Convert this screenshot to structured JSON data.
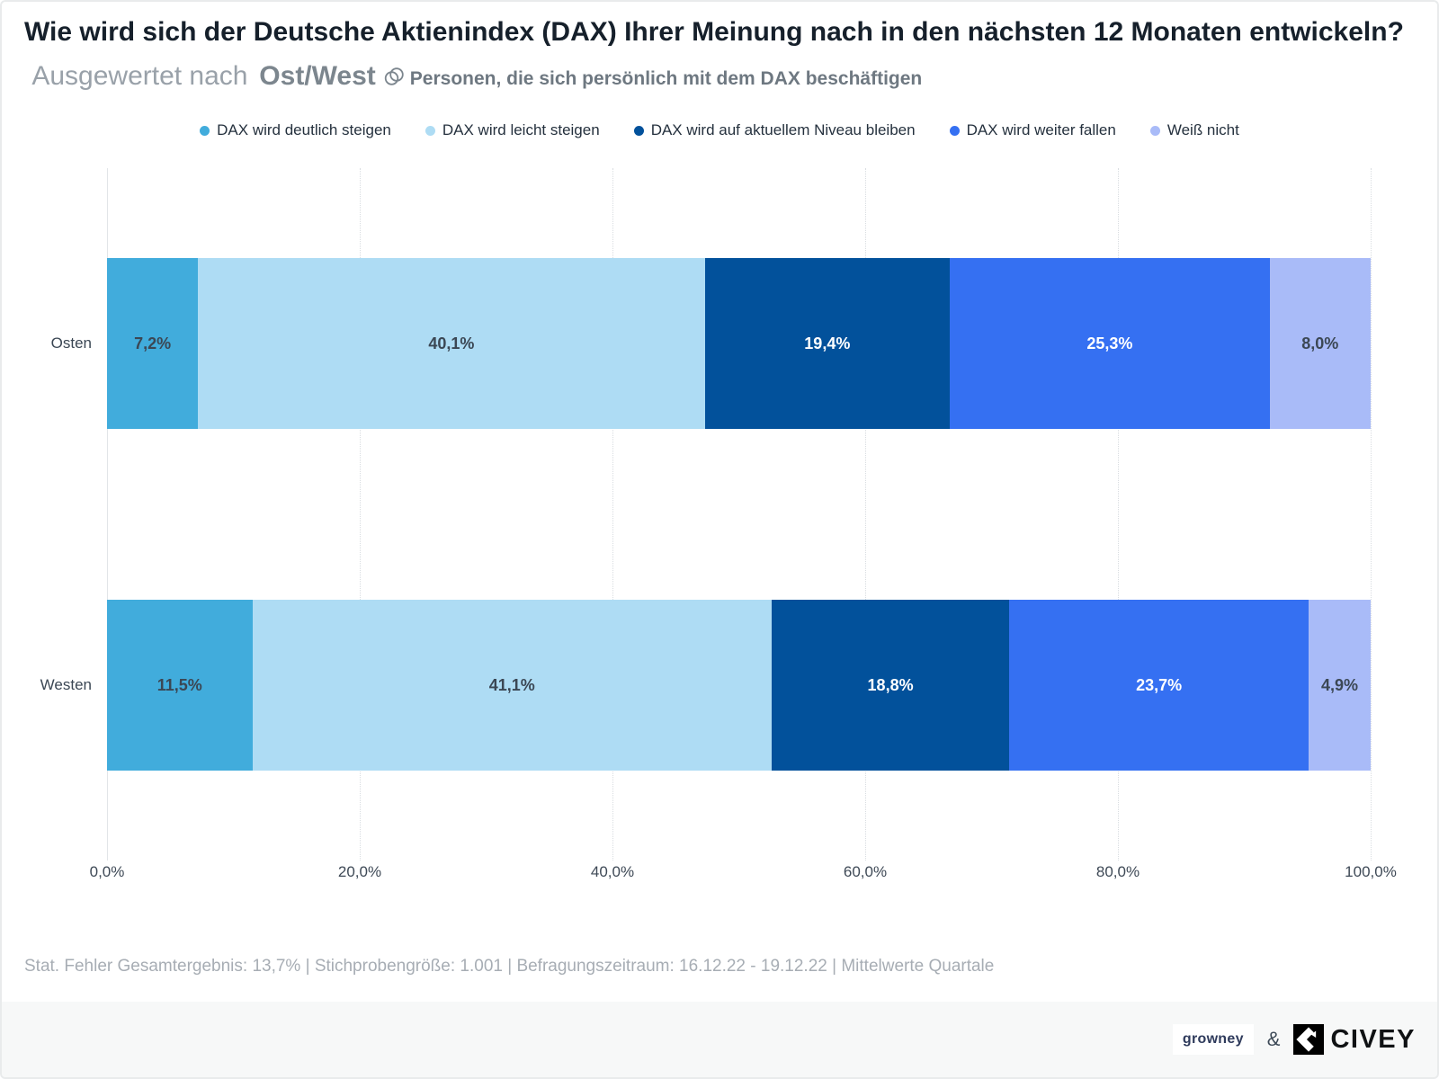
{
  "title": {
    "question": "Wie wird sich der Deutsche Aktienindex (DAX) Ihrer Meinung nach in den nächsten 12 Monaten entwickeln?",
    "evaluated_by_label": "Ausgewertet nach",
    "evaluated_by_value": "Ost/West",
    "audience_filter": "Personen, die sich persönlich mit dem DAX beschäftigen"
  },
  "chart_data": {
    "type": "bar",
    "variant": "horizontal-stacked",
    "unit": "%",
    "categories": [
      "Osten",
      "Westen"
    ],
    "series": [
      {
        "name": "DAX wird deutlich steigen",
        "color": "#41ACDC",
        "label_style": "dark",
        "values": [
          7.2,
          11.5
        ],
        "display": [
          "7,2%",
          "11,5%"
        ]
      },
      {
        "name": "DAX wird leicht steigen",
        "color": "#AEDCF4",
        "label_style": "dark",
        "values": [
          40.1,
          41.1
        ],
        "display": [
          "40,1%",
          "41,1%"
        ]
      },
      {
        "name": "DAX wird auf aktuellem Niveau bleiben",
        "color": "#02519B",
        "label_style": "light",
        "values": [
          19.4,
          18.8
        ],
        "display": [
          "19,4%",
          "18,8%"
        ]
      },
      {
        "name": "DAX wird weiter fallen",
        "color": "#3570F2",
        "label_style": "light",
        "values": [
          25.3,
          23.7
        ],
        "display": [
          "25,3%",
          "23,7%"
        ]
      },
      {
        "name": "Weiß nicht",
        "color": "#A9BBF8",
        "label_style": "dark",
        "values": [
          8.0,
          4.9
        ],
        "display": [
          "8,0%",
          "4,9%"
        ]
      }
    ],
    "x_axis": {
      "ticks": [
        "0,0%",
        "20,0%",
        "40,0%",
        "60,0%",
        "80,0%",
        "100,0%"
      ],
      "min": 0,
      "max": 100
    },
    "legend_position": "top-center",
    "grid": "vertical-dotted"
  },
  "footer": {
    "methodology": "Stat. Fehler Gesamtergebnis: 13,7% | Stichprobengröße: 1.001 | Befragungszeitraum: 16.12.22 - 19.12.22 | Mittelwerte Quartale"
  },
  "branding": {
    "partner": "growney",
    "separator": "&",
    "brand": "CIVEY"
  }
}
